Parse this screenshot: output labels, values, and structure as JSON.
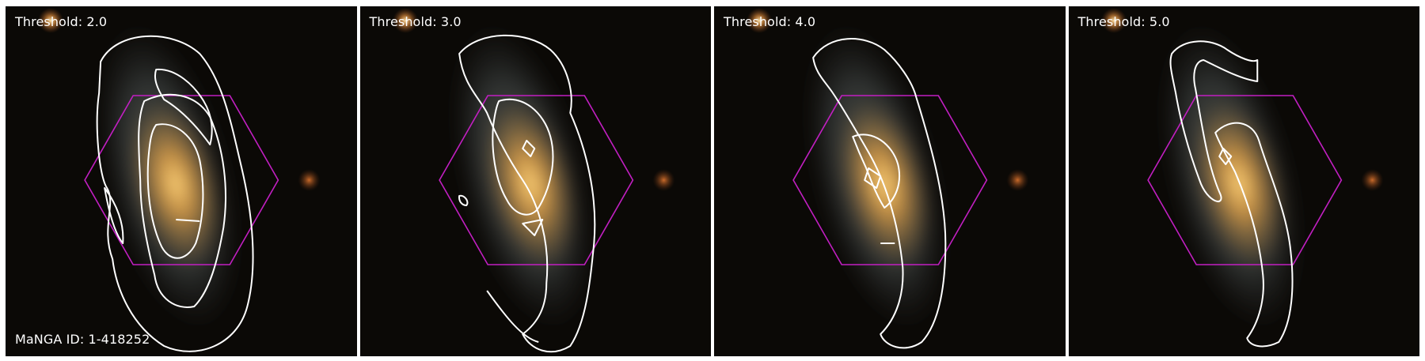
{
  "figure": {
    "id_label": "MaNGA ID: 1-418252",
    "panels": [
      {
        "threshold_label": "Threshold: 2.0"
      },
      {
        "threshold_label": "Threshold: 3.0"
      },
      {
        "threshold_label": "Threshold: 4.0"
      },
      {
        "threshold_label": "Threshold: 5.0"
      }
    ],
    "colors": {
      "background": "#0b0906",
      "contour": "#ffffff",
      "hexagon": "#c21fc2",
      "galaxy_core": "#f2b050",
      "galaxy_disk": "#9a9a84"
    }
  }
}
